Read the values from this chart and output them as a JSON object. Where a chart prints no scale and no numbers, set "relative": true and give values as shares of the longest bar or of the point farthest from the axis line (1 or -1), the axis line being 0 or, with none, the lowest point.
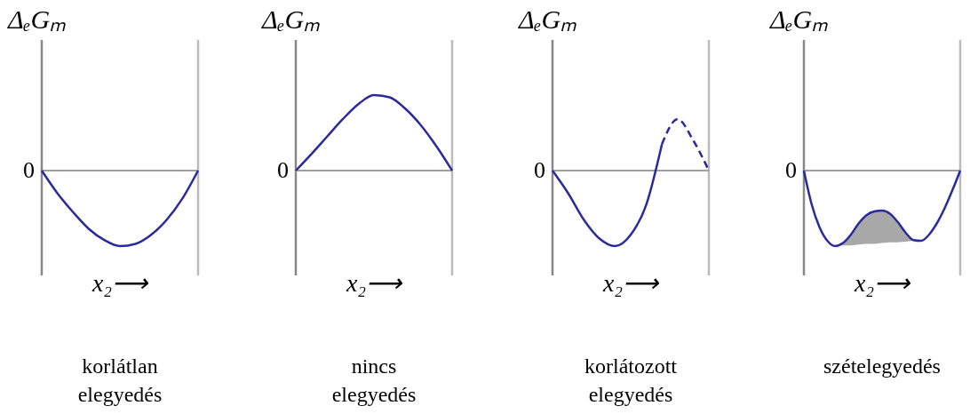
{
  "chart_data": [
    {
      "type": "line",
      "title": "korlátlan elegyedés",
      "xlabel": "x₂⟶",
      "ylabel": "ΔₑGₘ",
      "relative": true,
      "categories": [
        null,
        null,
        null,
        null,
        null,
        null,
        null,
        null,
        null,
        null,
        null
      ],
      "series": [
        {
          "color": "#2b2a9c",
          "values": [
            0,
            -0.3,
            -0.55,
            -0.77,
            -0.92,
            -1,
            -0.97,
            -0.85,
            -0.65,
            -0.37,
            0
          ]
        }
      ],
      "ref_lines": [
        {
          "axis": "y",
          "value": 0,
          "label": "0",
          "color": "#a0a0a0"
        }
      ]
    },
    {
      "type": "line",
      "title": "nincs elegyedés",
      "xlabel": "x₂⟶",
      "ylabel": "ΔₑGₘ",
      "relative": true,
      "categories": [
        null,
        null,
        null,
        null,
        null,
        null,
        null,
        null,
        null,
        null,
        null
      ],
      "series": [
        {
          "color": "#2b2a9c",
          "values": [
            0,
            0.22,
            0.45,
            0.68,
            0.88,
            1,
            0.97,
            0.82,
            0.6,
            0.32,
            0
          ]
        }
      ],
      "ref_lines": [
        {
          "axis": "y",
          "value": 0,
          "label": "0",
          "color": "#a0a0a0"
        }
      ]
    },
    {
      "type": "line",
      "title": "korlátozott elegyedés",
      "xlabel": "x₂⟶",
      "ylabel": "ΔₑGₘ",
      "relative": true,
      "categories": [
        null,
        null,
        null,
        null,
        null,
        null,
        null,
        null,
        null,
        null,
        null
      ],
      "series": [
        {
          "color": "#2b2a9c",
          "line_style": "solid",
          "values": [
            0,
            -0.3,
            -0.65,
            -0.9,
            -1,
            -0.85,
            -0.45,
            0.35,
            null,
            null,
            null
          ]
        },
        {
          "color": "#2b2a9c",
          "line_style": "dashed",
          "values": [
            null,
            null,
            null,
            null,
            null,
            null,
            null,
            0.35,
            0.68,
            0.4,
            0
          ]
        }
      ],
      "ref_lines": [
        {
          "axis": "y",
          "value": 0,
          "label": "0",
          "color": "#a0a0a0"
        }
      ]
    },
    {
      "type": "line",
      "title": "szételegyedés",
      "xlabel": "x₂⟶",
      "ylabel": "ΔₑGₘ",
      "relative": true,
      "categories": [
        null,
        null,
        null,
        null,
        null,
        null,
        null,
        null,
        null,
        null,
        null,
        null,
        null,
        null,
        null,
        null,
        null,
        null,
        null,
        null,
        null
      ],
      "series": [
        {
          "color": "#2b2a9c",
          "values": [
            0,
            -0.45,
            -0.75,
            -0.93,
            -1,
            -0.96,
            -0.85,
            -0.7,
            -0.59,
            -0.54,
            -0.53,
            -0.57,
            -0.68,
            -0.82,
            -0.92,
            -0.93,
            -0.85,
            -0.7,
            -0.5,
            -0.26,
            0
          ],
          "lower": [
            null,
            null,
            null,
            null,
            -1,
            -0.99,
            -0.99,
            -0.98,
            -0.97,
            -0.97,
            -0.96,
            -0.95,
            -0.95,
            -0.94,
            -0.93,
            null,
            null,
            null,
            null,
            null,
            null
          ],
          "upper": [
            null,
            null,
            null,
            null,
            -1,
            -0.96,
            -0.85,
            -0.7,
            -0.59,
            -0.54,
            -0.53,
            -0.57,
            -0.68,
            -0.82,
            -0.93,
            null,
            null,
            null,
            null,
            null,
            null
          ]
        }
      ],
      "ref_lines": [
        {
          "axis": "y",
          "value": 0,
          "label": "0",
          "color": "#a0a0a0"
        }
      ]
    }
  ]
}
